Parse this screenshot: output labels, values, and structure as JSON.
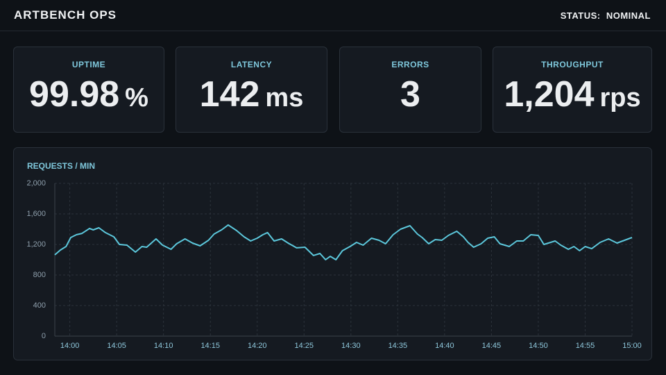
{
  "header": {
    "title": "ARTBENCH OPS",
    "status": "STATUS:  NOMINAL"
  },
  "kpis": [
    {
      "label": "UPTIME",
      "value": "99.98",
      "unit": "%"
    },
    {
      "label": "LATENCY",
      "value": "142",
      "unit": "ms"
    },
    {
      "label": "ERRORS",
      "value": "3",
      "unit": ""
    },
    {
      "label": "THROUGHPUT",
      "value": "1,204",
      "unit": "rps"
    }
  ],
  "chart_data": {
    "type": "line",
    "title": "REQUESTS / MIN",
    "x": [
      -1.6,
      -1.0,
      -0.4,
      0.1,
      0.7,
      1.3,
      2.1,
      2.5,
      3.1,
      3.8,
      4.7,
      5.3,
      6.1,
      7.0,
      7.7,
      8.2,
      9.2,
      9.9,
      10.8,
      11.4,
      12.3,
      13.1,
      13.9,
      14.8,
      15.4,
      16.2,
      16.9,
      17.8,
      18.6,
      19.3,
      20.0,
      20.6,
      21.1,
      21.8,
      22.6,
      23.3,
      24.2,
      25.1,
      26.0,
      26.7,
      27.3,
      27.8,
      28.4,
      29.1,
      29.9,
      30.6,
      31.3,
      32.2,
      33.0,
      33.7,
      34.5,
      35.3,
      36.3,
      37.1,
      37.6,
      38.3,
      39.0,
      39.7,
      40.4,
      41.3,
      42.0,
      42.5,
      43.1,
      43.9,
      44.6,
      45.3,
      45.9,
      46.9,
      47.7,
      48.4,
      49.2,
      50.0,
      50.6,
      51.8,
      52.4,
      53.2,
      53.8,
      54.4,
      55.0,
      55.7,
      56.6,
      57.5,
      58.4,
      60.0
    ],
    "series": [
      {
        "name": "requests",
        "color": "#5cc8dc",
        "values": [
          1064,
          1127,
          1173,
          1291,
          1327,
          1345,
          1409,
          1391,
          1418,
          1355,
          1300,
          1200,
          1191,
          1100,
          1173,
          1164,
          1273,
          1191,
          1136,
          1209,
          1273,
          1218,
          1182,
          1255,
          1336,
          1391,
          1455,
          1382,
          1300,
          1245,
          1282,
          1327,
          1355,
          1245,
          1273,
          1218,
          1155,
          1164,
          1055,
          1082,
          1000,
          1045,
          1000,
          1118,
          1173,
          1227,
          1191,
          1282,
          1255,
          1209,
          1327,
          1400,
          1445,
          1336,
          1291,
          1209,
          1264,
          1255,
          1318,
          1373,
          1300,
          1227,
          1164,
          1209,
          1282,
          1300,
          1209,
          1173,
          1245,
          1245,
          1327,
          1318,
          1200,
          1245,
          1191,
          1136,
          1173,
          1118,
          1173,
          1145,
          1227,
          1273,
          1218,
          1291
        ]
      }
    ],
    "xlim": [
      -1.6,
      60
    ],
    "xticks": [
      {
        "value": 0,
        "label": "14:00"
      },
      {
        "value": 5,
        "label": "14:05"
      },
      {
        "value": 10,
        "label": "14:10"
      },
      {
        "value": 15,
        "label": "14:15"
      },
      {
        "value": 20,
        "label": "14:20"
      },
      {
        "value": 25,
        "label": "14:25"
      },
      {
        "value": 30,
        "label": "14:30"
      },
      {
        "value": 35,
        "label": "14:35"
      },
      {
        "value": 40,
        "label": "14:40"
      },
      {
        "value": 45,
        "label": "14:45"
      },
      {
        "value": 50,
        "label": "14:50"
      },
      {
        "value": 55,
        "label": "14:55"
      },
      {
        "value": 60,
        "label": "15:00"
      }
    ],
    "ylim": [
      0,
      2000
    ],
    "yticks": [
      0,
      400,
      800,
      {
        "value": 1200,
        "label": "1,200"
      },
      {
        "value": 1600,
        "label": "1,600"
      },
      {
        "value": 2000,
        "label": "2,000"
      }
    ],
    "grid": true
  }
}
